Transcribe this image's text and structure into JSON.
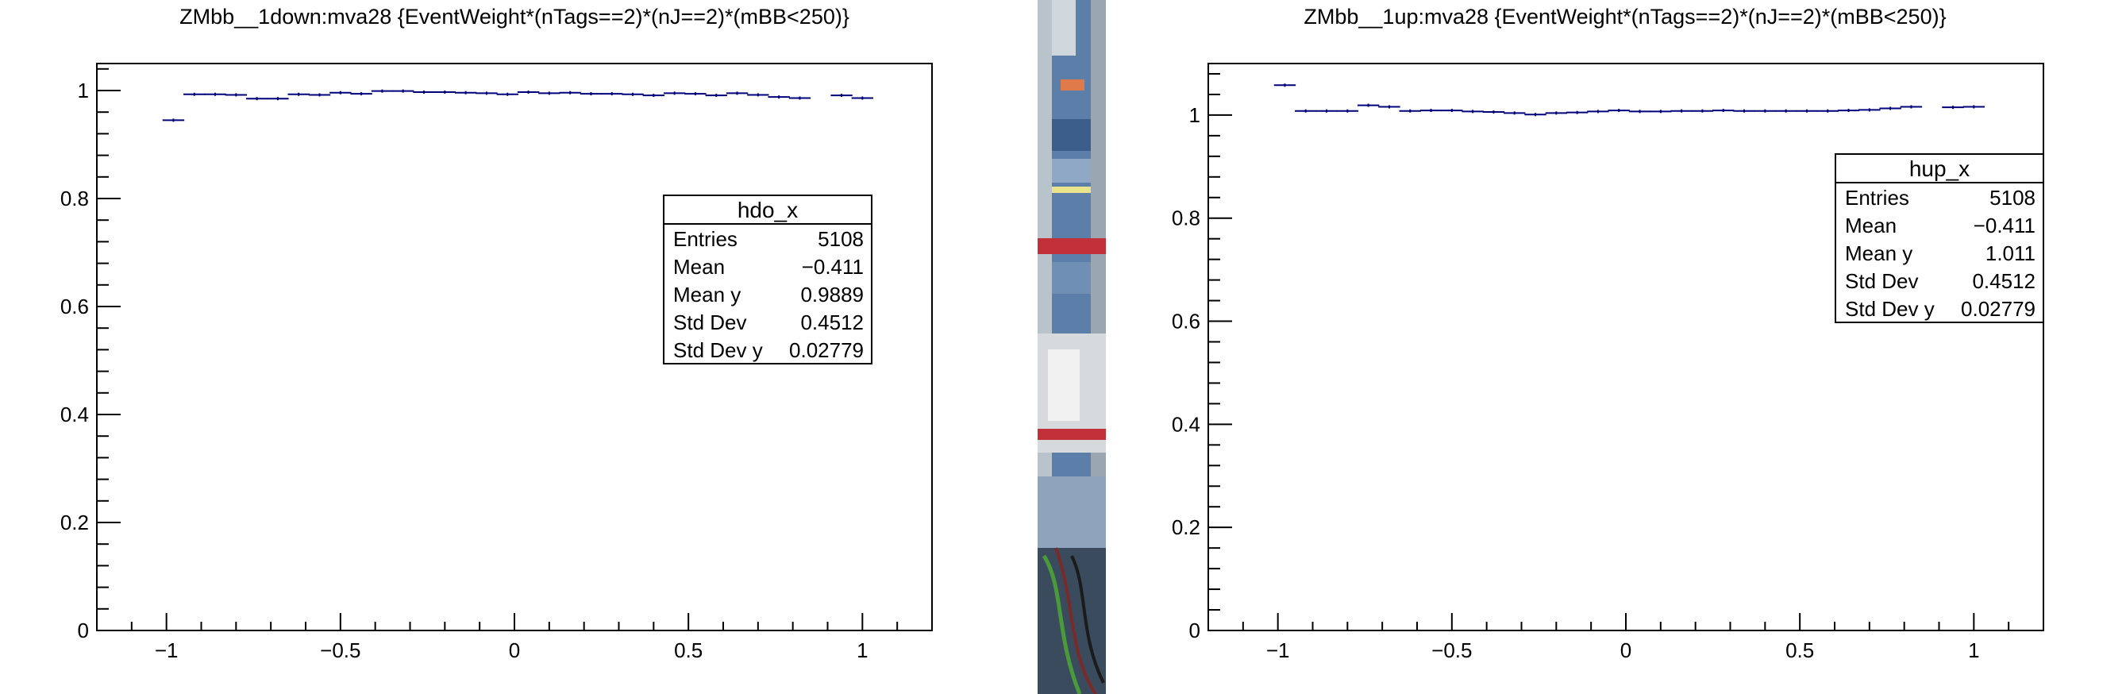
{
  "chart_data": [
    {
      "type": "scatter",
      "title": "ZMbb__1down:mva28 {EventWeight*(nTags==2)*(nJ==2)*(mBB<250)}",
      "xlabel": "",
      "ylabel": "",
      "xlim": [
        -1.2,
        1.2
      ],
      "ylim": [
        0,
        1.05
      ],
      "x_ticks": [
        "−1",
        "−0.5",
        "0",
        "0.5",
        "1"
      ],
      "y_ticks": [
        "0",
        "0.2",
        "0.4",
        "0.6",
        "0.8",
        "1"
      ],
      "series": [
        {
          "bin_width": 0.0625,
          "x": [
            -0.98,
            -0.92,
            -0.86,
            -0.8,
            -0.74,
            -0.68,
            -0.62,
            -0.56,
            -0.5,
            -0.44,
            -0.38,
            -0.32,
            -0.26,
            -0.2,
            -0.14,
            -0.08,
            -0.02,
            0.04,
            0.1,
            0.16,
            0.22,
            0.28,
            0.34,
            0.4,
            0.46,
            0.52,
            0.58,
            0.64,
            0.7,
            0.76,
            0.82,
            0.94,
            1.0
          ],
          "y": [
            0.945,
            0.993,
            0.993,
            0.992,
            0.985,
            0.985,
            0.993,
            0.992,
            0.996,
            0.994,
            0.999,
            0.999,
            0.997,
            0.997,
            0.996,
            0.995,
            0.993,
            0.997,
            0.995,
            0.996,
            0.994,
            0.994,
            0.993,
            0.991,
            0.995,
            0.994,
            0.991,
            0.995,
            0.992,
            0.988,
            0.986,
            0.991,
            0.986
          ]
        }
      ],
      "stats": {
        "name": "hdo_x",
        "rows": [
          {
            "label": "Entries",
            "value": "5108"
          },
          {
            "label": "Mean",
            "value": "−0.411"
          },
          {
            "label": "Mean y",
            "value": "0.9889"
          },
          {
            "label": "Std Dev",
            "value": "0.4512"
          },
          {
            "label": "Std Dev y",
            "value": "0.02779"
          }
        ]
      }
    },
    {
      "type": "scatter",
      "title": "ZMbb__1up:mva28 {EventWeight*(nTags==2)*(nJ==2)*(mBB<250)}",
      "xlabel": "",
      "ylabel": "",
      "xlim": [
        -1.2,
        1.2
      ],
      "ylim": [
        0,
        1.1
      ],
      "x_ticks": [
        "−1",
        "−0.5",
        "0",
        "0.5",
        "1"
      ],
      "y_ticks": [
        "0",
        "0.2",
        "0.4",
        "0.6",
        "0.8",
        "1"
      ],
      "series": [
        {
          "bin_width": 0.0625,
          "x": [
            -0.98,
            -0.92,
            -0.86,
            -0.8,
            -0.74,
            -0.68,
            -0.62,
            -0.56,
            -0.5,
            -0.44,
            -0.38,
            -0.32,
            -0.26,
            -0.2,
            -0.14,
            -0.08,
            -0.02,
            0.04,
            0.1,
            0.16,
            0.22,
            0.28,
            0.34,
            0.4,
            0.46,
            0.52,
            0.58,
            0.64,
            0.7,
            0.76,
            0.82,
            0.94,
            1.0
          ],
          "y": [
            1.058,
            1.008,
            1.008,
            1.008,
            1.019,
            1.016,
            1.008,
            1.009,
            1.009,
            1.007,
            1.006,
            1.004,
            1.001,
            1.004,
            1.005,
            1.007,
            1.009,
            1.007,
            1.007,
            1.008,
            1.008,
            1.009,
            1.008,
            1.008,
            1.008,
            1.008,
            1.008,
            1.009,
            1.01,
            1.013,
            1.016,
            1.015,
            1.016
          ]
        }
      ],
      "stats": {
        "name": "hup_x",
        "rows": [
          {
            "label": "Entries",
            "value": "5108"
          },
          {
            "label": "Mean",
            "value": "−0.411"
          },
          {
            "label": "Mean y",
            "value": "1.011"
          },
          {
            "label": "Std Dev",
            "value": "0.4512"
          },
          {
            "label": "Std Dev y",
            "value": "0.02779"
          }
        ]
      }
    }
  ],
  "colors": {
    "marker": "#00007a",
    "axis": "#000000",
    "background": "#ffffff"
  }
}
